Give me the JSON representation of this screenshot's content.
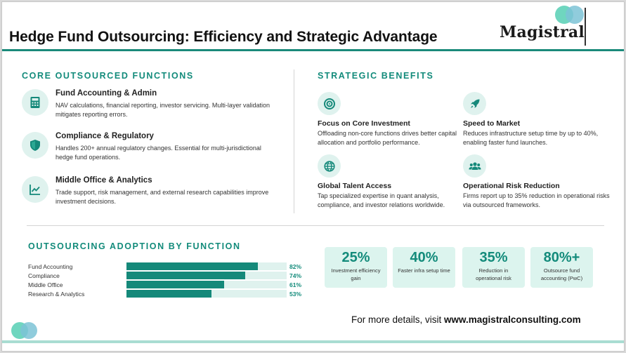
{
  "header": {
    "title": "Hedge Fund Outsourcing: Efficiency and Strategic Advantage",
    "logo_text": "Magistral"
  },
  "functions": {
    "heading": "CORE OUTSOURCED FUNCTIONS",
    "items": [
      {
        "icon": "calculator-icon",
        "title": "Fund Accounting & Admin",
        "desc": "NAV calculations, financial reporting, investor servicing. Multi-layer validation mitigates reporting errors."
      },
      {
        "icon": "shield-icon",
        "title": "Compliance & Regulatory",
        "desc": "Handles 200+ annual regulatory changes. Essential for multi-jurisdictional hedge fund operations."
      },
      {
        "icon": "line-chart-icon",
        "title": "Middle Office & Analytics",
        "desc": "Trade support, risk management, and external research capabilities improve investment decisions."
      }
    ]
  },
  "benefits": {
    "heading": "STRATEGIC BENEFITS",
    "items": [
      {
        "icon": "target-icon",
        "title": "Focus on Core Investment",
        "desc": "Offloading non-core functions drives better capital allocation and portfolio performance."
      },
      {
        "icon": "rocket-icon",
        "title": "Speed to Market",
        "desc": "Reduces infrastructure setup time by up to 40%, enabling faster fund launches."
      },
      {
        "icon": "globe-icon",
        "title": "Global Talent Access",
        "desc": "Tap specialized expertise in quant analysis, compliance, and investor relations worldwide."
      },
      {
        "icon": "users-icon",
        "title": "Operational Risk Reduction",
        "desc": "Firms report up to 35% reduction in operational risks via outsourced frameworks."
      }
    ]
  },
  "adoption": {
    "heading": "OUTSOURCING ADOPTION BY FUNCTION",
    "rows": [
      {
        "label": "Fund Accounting",
        "value": 82,
        "display": "82%"
      },
      {
        "label": "Compliance",
        "value": 74,
        "display": "74%"
      },
      {
        "label": "Middle Office",
        "value": 61,
        "display": "61%"
      },
      {
        "label": "Research & Analytics",
        "value": 53,
        "display": "53%"
      }
    ]
  },
  "stats": [
    {
      "value": "25%",
      "label": "Investment efficiency gain"
    },
    {
      "value": "40%",
      "label": "Faster infra setup time"
    },
    {
      "value": "35%",
      "label": "Reduction in operational risk"
    },
    {
      "value": "80%+",
      "label": "Outsource fund accounting (PwC)"
    }
  ],
  "footer": {
    "prefix": "For more details, visit ",
    "url": "www.magistralconsulting.com"
  },
  "colors": {
    "accent": "#15897a",
    "accent_light": "#dff2ee"
  }
}
